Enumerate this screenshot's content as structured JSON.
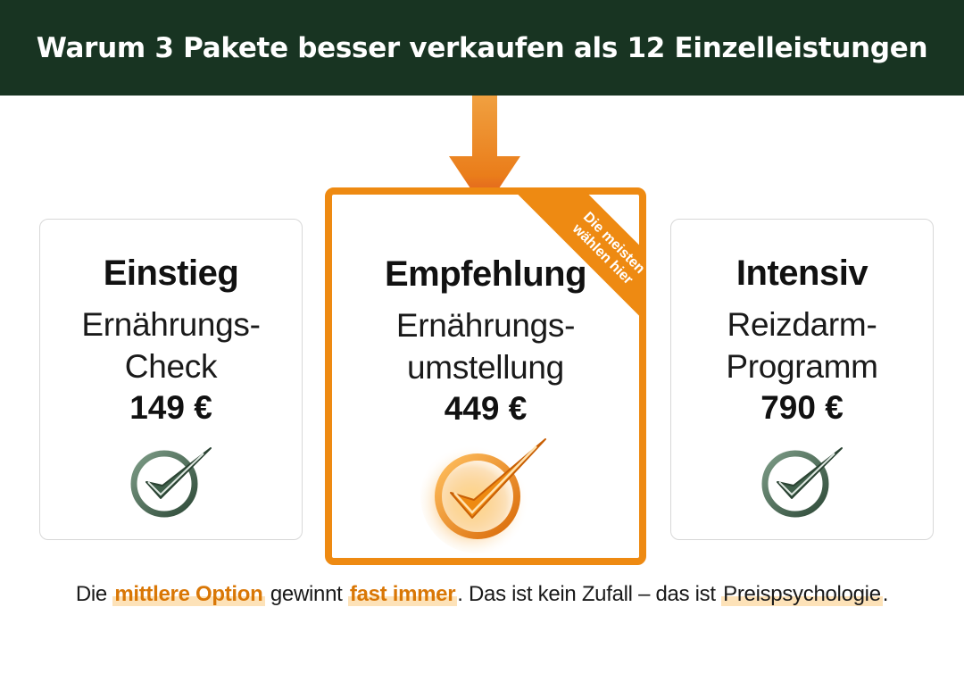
{
  "header": {
    "title": "Warum 3 Pakete besser verkaufen als 12 Einzelleistungen"
  },
  "packages": [
    {
      "name": "Einstieg",
      "product_line1": "Ernährungs-",
      "product_line2": "Check",
      "price": "149 €"
    },
    {
      "name": "Empfehlung",
      "product_line1": "Ernährungs-",
      "product_line2": "umstellung",
      "price": "449 €",
      "ribbon_line1": "Die meisten",
      "ribbon_line2": "wählen hier"
    },
    {
      "name": "Intensiv",
      "product_line1": "Reizdarm-",
      "product_line2": "Programm",
      "price": "790 €"
    }
  ],
  "tagline": {
    "part1": "Die ",
    "highlight1": "mittlere Option",
    "part2": " gewinnt ",
    "highlight2": "fast immer",
    "part3": ". Das ist kein Zufall – das ist ",
    "highlight3": "Preispsychologie",
    "part4": "."
  },
  "colors": {
    "header_bg": "#183422",
    "accent": "#ee8a12",
    "check_green": "#4a6a55"
  },
  "icons": [
    "arrow-down-icon",
    "checkmark-icon"
  ]
}
